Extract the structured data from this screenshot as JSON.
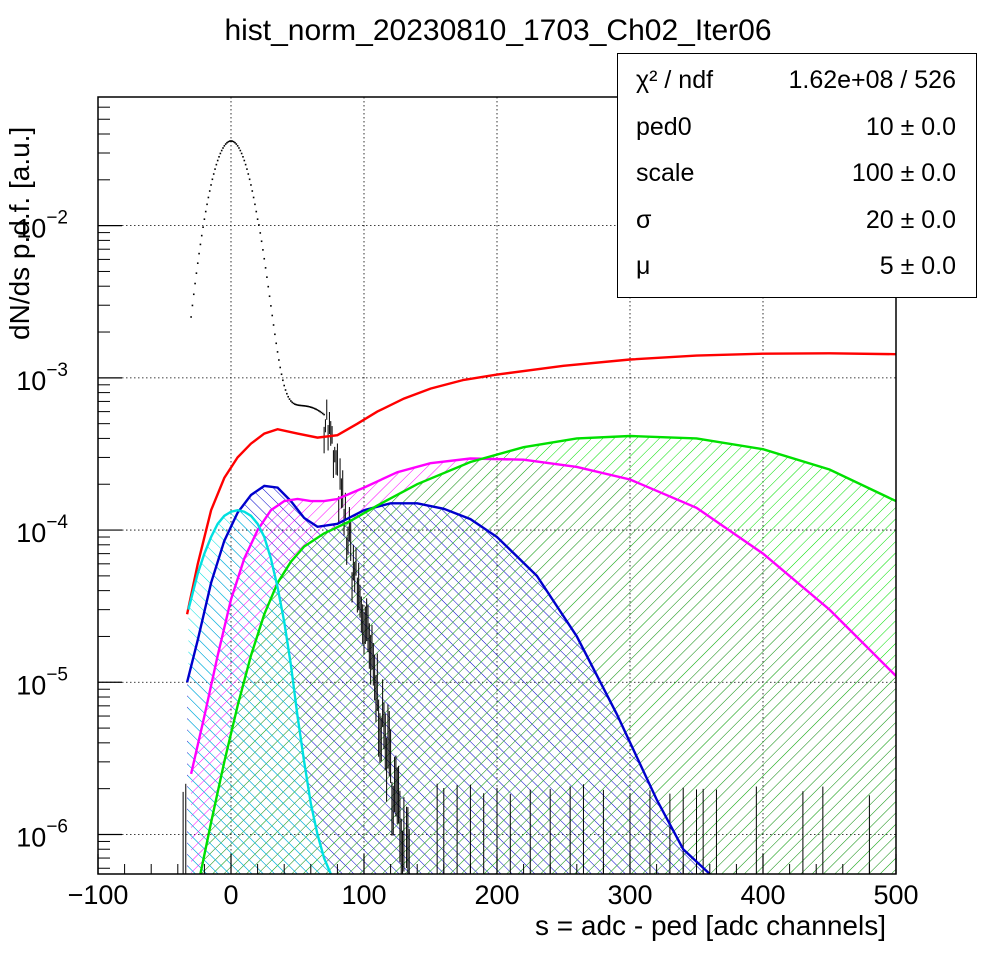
{
  "title": "hist_norm_20230810_1703_Ch02_Iter06",
  "stats": [
    {
      "name": "χ² / ndf",
      "value": "1.62e+08 / 526"
    },
    {
      "name": "ped0",
      "value": "10 ± 0.0"
    },
    {
      "name": "scale",
      "value": "100 ± 0.0"
    },
    {
      "name": "σ",
      "value": "20 ± 0.0"
    },
    {
      "name": "μ",
      "value": "5 ± 0.0"
    }
  ],
  "chart_data": {
    "type": "line",
    "title": "hist_norm_20230810_1703_Ch02_Iter06",
    "xlabel": "s = adc - ped [adc channels]",
    "ylabel": "dN/ds p.d.f. [a.u.]",
    "xlim": [
      -100,
      500
    ],
    "ylim": [
      5.5e-07,
      0.07
    ],
    "yscale": "log",
    "grid": true,
    "x_ticks": [
      "−100",
      "0",
      "100",
      "200",
      "300",
      "400",
      "500"
    ],
    "y_ticks": [
      {
        "base": "10",
        "exp": "−6"
      },
      {
        "base": "10",
        "exp": "−5"
      },
      {
        "base": "10",
        "exp": "−4"
      },
      {
        "base": "10",
        "exp": "−3"
      },
      {
        "base": "10",
        "exp": "−2"
      }
    ],
    "legend_position": "top-right",
    "series": [
      {
        "color": "#ff0000",
        "fill": false,
        "x": [
          -33,
          -25,
          -15,
          -5,
          5,
          15,
          25,
          35,
          50,
          65,
          80,
          95,
          110,
          130,
          150,
          175,
          200,
          250,
          300,
          350,
          400,
          450,
          500
        ],
        "y": [
          2.8e-05,
          6e-05,
          0.000135,
          0.00022,
          0.0003,
          0.00037,
          0.00043,
          0.00046,
          0.00043,
          0.000405,
          0.00042,
          0.0005,
          0.0006,
          0.00073,
          0.00085,
          0.00097,
          0.00105,
          0.0012,
          0.00132,
          0.0014,
          0.00144,
          0.00145,
          0.00143
        ]
      },
      {
        "color": "#0000cc",
        "fill": true,
        "x": [
          -33,
          -25,
          -15,
          -5,
          5,
          15,
          25,
          35,
          45,
          55,
          65,
          80,
          100,
          120,
          140,
          160,
          180,
          200,
          230,
          260,
          290,
          320,
          340,
          360
        ],
        "y": [
          1e-05,
          1.9e-05,
          4.5e-05,
          8.5e-05,
          0.00013,
          0.00017,
          0.000195,
          0.00019,
          0.000155,
          0.00012,
          0.000105,
          0.00011,
          0.000135,
          0.00015,
          0.00015,
          0.000138,
          0.000118,
          9e-05,
          5e-05,
          2e-05,
          6.2e-06,
          1.7e-06,
          8e-07,
          5.5e-07
        ]
      },
      {
        "color": "#ff00ff",
        "fill": true,
        "x": [
          -30,
          -20,
          -10,
          0,
          10,
          20,
          30,
          40,
          50,
          60,
          70,
          80,
          100,
          125,
          150,
          180,
          220,
          260,
          300,
          350,
          400,
          450,
          500
        ],
        "y": [
          2.5e-06,
          6e-06,
          1.5e-05,
          3.5e-05,
          6.5e-05,
          0.0001,
          0.000135,
          0.000155,
          0.00016,
          0.000155,
          0.000155,
          0.00016,
          0.00019,
          0.00024,
          0.000275,
          0.000295,
          0.00029,
          0.00026,
          0.000215,
          0.00014,
          7e-05,
          3e-05,
          1.1e-05
        ]
      },
      {
        "color": "#00e000",
        "fill": true,
        "x": [
          -23,
          -15,
          -5,
          5,
          15,
          25,
          35,
          45,
          55,
          70,
          90,
          110,
          140,
          180,
          220,
          260,
          300,
          350,
          400,
          450,
          500
        ],
        "y": [
          5.5e-07,
          1.2e-06,
          3e-06,
          7e-06,
          1.5e-05,
          2.8e-05,
          4.5e-05,
          6.2e-05,
          7.8e-05,
          9.5e-05,
          0.000115,
          0.000145,
          0.0002,
          0.00028,
          0.00035,
          0.0004,
          0.000415,
          0.0004,
          0.00034,
          0.00025,
          0.000155
        ]
      },
      {
        "color": "#00e0e0",
        "fill": true,
        "x": [
          -32,
          -25,
          -20,
          -15,
          -10,
          -5,
          0,
          5,
          10,
          15,
          20,
          25,
          30,
          35,
          40,
          45,
          50,
          55,
          60,
          65,
          70,
          75
        ],
        "y": [
          3e-05,
          5.2e-05,
          7e-05,
          9e-05,
          0.00011,
          0.000124,
          0.000132,
          0.000135,
          0.000132,
          0.000124,
          0.00011,
          9e-05,
          6.5e-05,
          4.2e-05,
          2.5e-05,
          1.3e-05,
          6e-06,
          3e-06,
          1.6e-06,
          1e-06,
          7e-07,
          5.5e-07
        ]
      }
    ]
  }
}
